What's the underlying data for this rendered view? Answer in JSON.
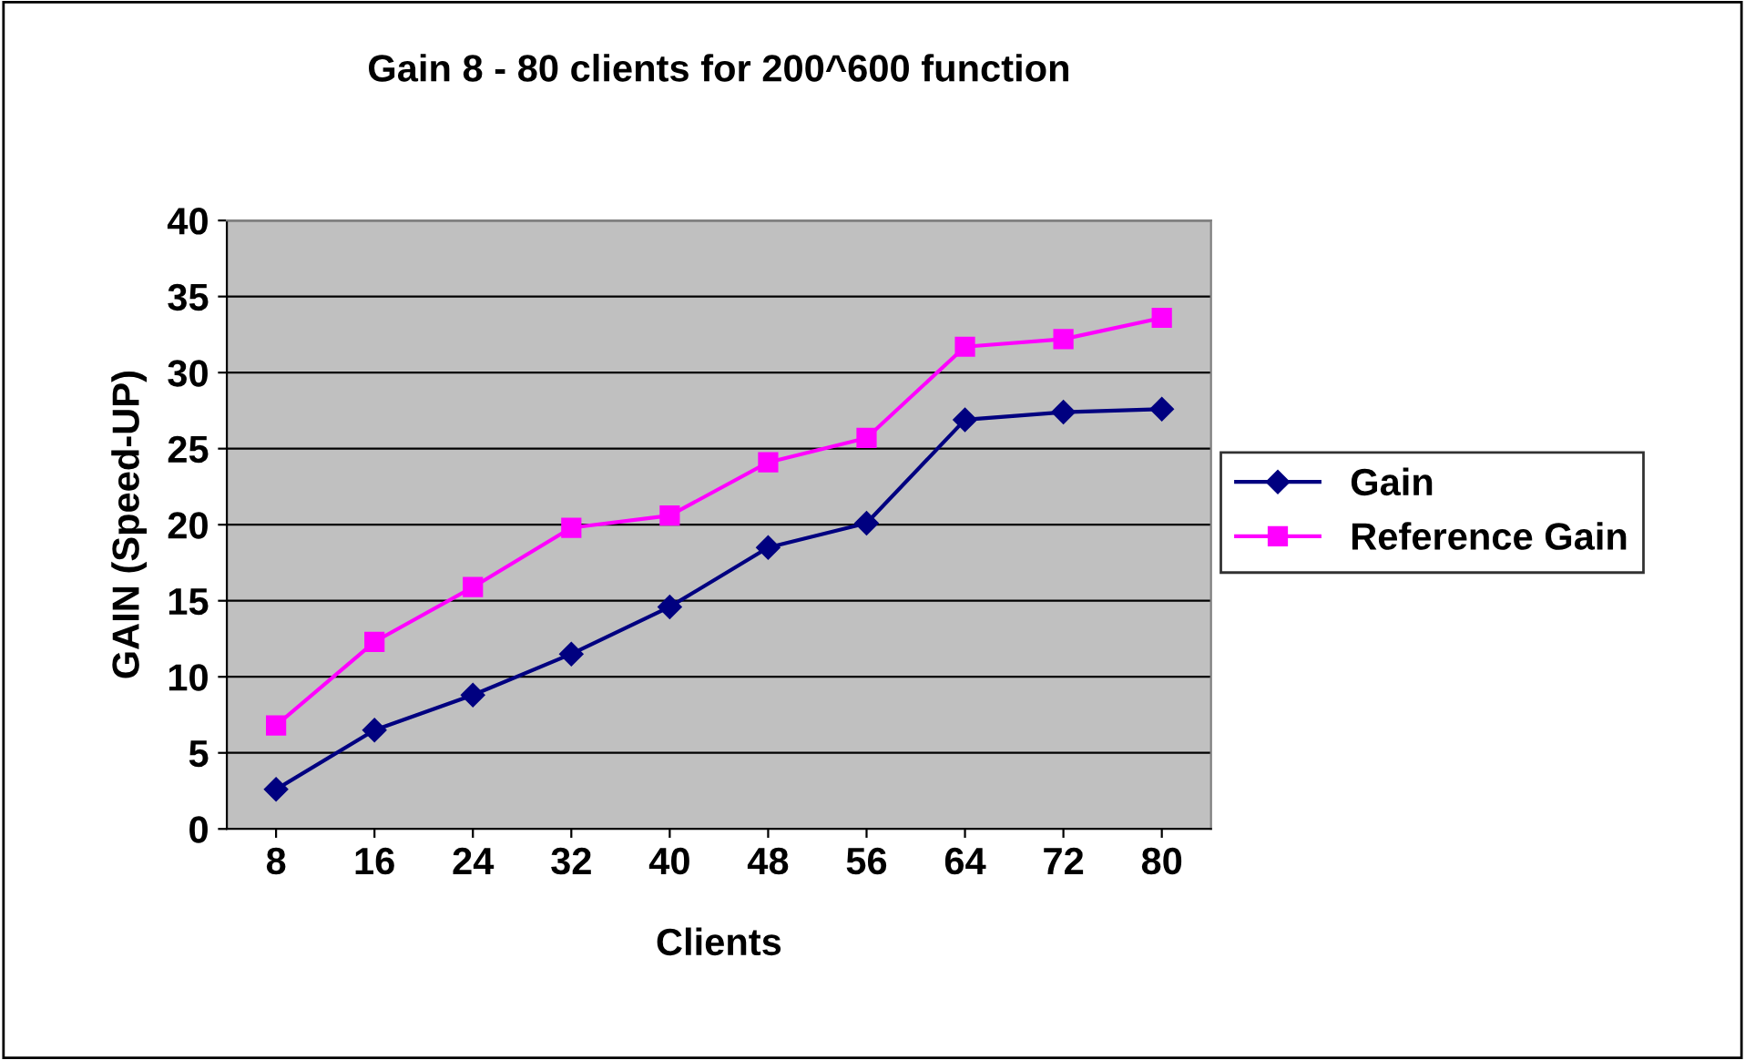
{
  "chart_data": {
    "type": "line",
    "title": "Gain 8 - 80 clients for 200^600 function",
    "xlabel": "Clients",
    "ylabel": "GAIN (Speed-UP)",
    "categories": [
      "8",
      "16",
      "24",
      "32",
      "40",
      "48",
      "56",
      "64",
      "72",
      "80"
    ],
    "series": [
      {
        "name": "Gain",
        "color": "#000080",
        "marker": "diamond",
        "values": [
          2.6,
          6.5,
          8.8,
          11.5,
          14.6,
          18.5,
          20.1,
          26.9,
          27.4,
          27.6
        ]
      },
      {
        "name": "Reference Gain",
        "color": "#ff00ff",
        "marker": "square",
        "values": [
          6.8,
          12.3,
          15.9,
          19.8,
          20.6,
          24.1,
          25.7,
          31.7,
          32.2,
          33.6
        ]
      }
    ],
    "ylim": [
      0,
      40
    ],
    "yticks": [
      0,
      5,
      10,
      15,
      20,
      25,
      30,
      35,
      40
    ],
    "grid": "y",
    "legend": "right",
    "line_style": "solid"
  }
}
